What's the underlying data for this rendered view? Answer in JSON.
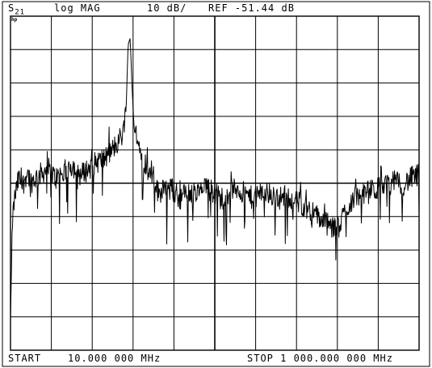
{
  "header": {
    "trace": "S",
    "trace_sub": "21",
    "format": "log MAG",
    "scale": "10 dB/",
    "ref": "REF -51.44 dB"
  },
  "logo": "hp",
  "footer": {
    "start": "START    10.000 000 MHz",
    "stop": "STOP 1 000.000 000 MHz"
  },
  "chart_data": {
    "type": "line",
    "title": "",
    "xlabel": "",
    "ylabel": "",
    "x_unit": "MHz",
    "y_unit": "dB",
    "xlim": [
      10,
      1000
    ],
    "ylim": [
      -101.44,
      -1.44
    ],
    "divisions": {
      "x": 10,
      "y": 10
    },
    "grid": true,
    "reference_line_db": -51.44,
    "series": [
      {
        "x": [
          10,
          15,
          20,
          30,
          40,
          50,
          60,
          80,
          100,
          120,
          140,
          160,
          180,
          200,
          220,
          240,
          260,
          280,
          290,
          295,
          300,
          305,
          310,
          315,
          320,
          325,
          330,
          340,
          350,
          360,
          370,
          380,
          390,
          400,
          420,
          440,
          460,
          480,
          500,
          520,
          540,
          560,
          580,
          600,
          620,
          640,
          660,
          680,
          700,
          720,
          740,
          760,
          780,
          800,
          820,
          840,
          860,
          880,
          900,
          920,
          940,
          960,
          980,
          1000
        ],
        "y": [
          -92,
          -62,
          -56,
          -50,
          -52,
          -48,
          -51,
          -49,
          -47,
          -50,
          -48,
          -46,
          -49,
          -47,
          -45,
          -44,
          -41,
          -37,
          -30,
          -10,
          -8,
          -24,
          -36,
          -37,
          -40,
          -41,
          -44,
          -46,
          -47,
          -51,
          -55,
          -52,
          -54,
          -53,
          -56,
          -54,
          -55,
          -53,
          -54,
          -56,
          -54,
          -53,
          -55,
          -56,
          -54,
          -55,
          -56,
          -55,
          -57,
          -58,
          -60,
          -62,
          -64,
          -66,
          -60,
          -56,
          -55,
          -54,
          -53,
          -52,
          -51,
          -52,
          -50,
          -49
        ]
      }
    ]
  }
}
